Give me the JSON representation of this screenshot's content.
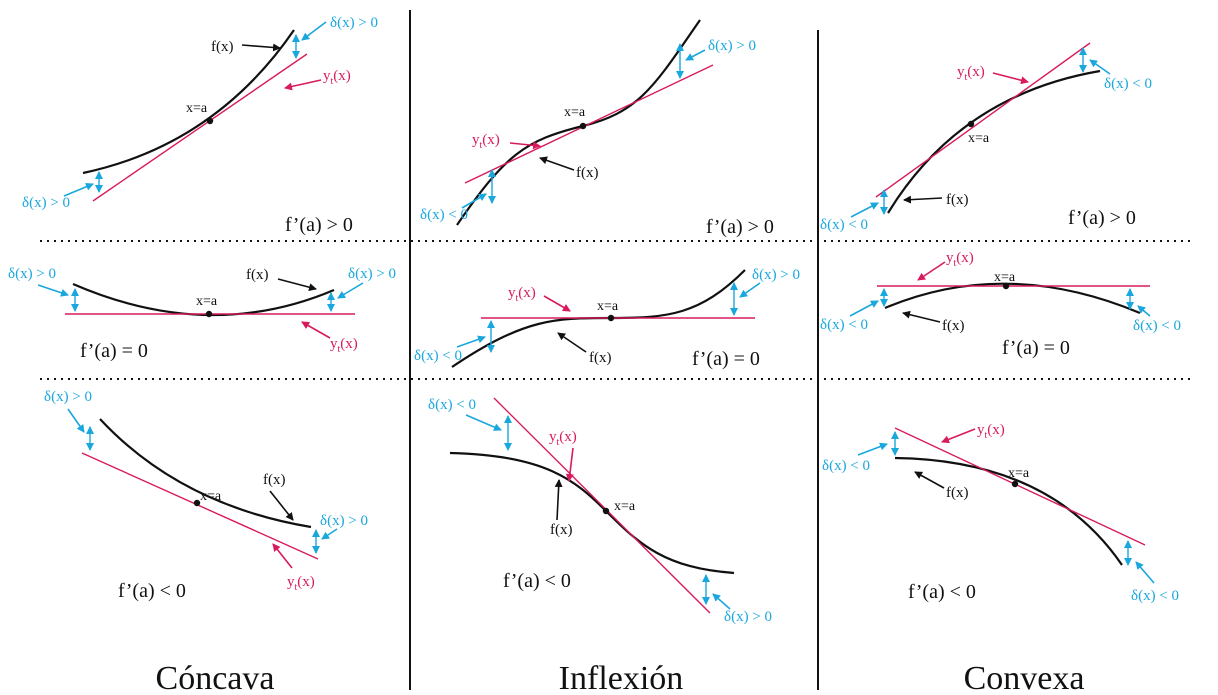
{
  "labels": {
    "fx": "f(x)",
    "yt_base": "y",
    "yt_sub": "t",
    "yt_tail": "(x)",
    "xa": "x=a",
    "delta_pos": "δ(x) > 0",
    "delta_neg": "δ(x) < 0"
  },
  "derivatives": {
    "pos": "f’(a) > 0",
    "zero": "f’(a) = 0",
    "neg": "f’(a) < 0"
  },
  "columns": {
    "concave": "Cóncava",
    "inflection": "Inflexión",
    "convex": "Convexa"
  },
  "colors": {
    "curve": "#111111",
    "tangent": "#d81b5e",
    "delta": "#1aa7dd"
  }
}
